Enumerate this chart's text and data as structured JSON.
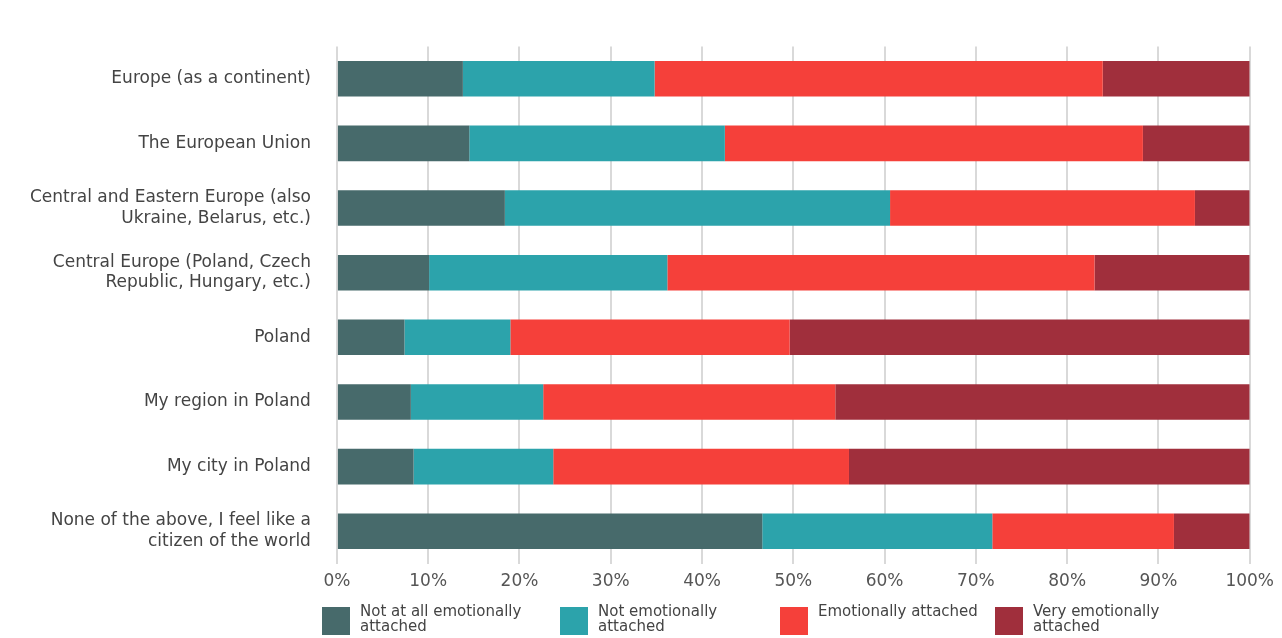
{
  "chart_data": {
    "type": "bar",
    "orientation": "horizontal",
    "stacked": true,
    "categories": [
      "Europe (as a continent)",
      "The European Union",
      "Central and Eastern Europe (also Ukraine, Belarus, etc.)",
      "Central Europe (Poland, Czech Republic, Hungary, etc.)",
      "Poland",
      "My region in Poland",
      "My city in Poland",
      "None of the above, I feel like a citizen of the world"
    ],
    "series": [
      {
        "name": "Not at all emotionally attached",
        "color": "#476a6b",
        "values": [
          13.8,
          14.5,
          18.4,
          10.1,
          7.4,
          8.1,
          8.4,
          46.6
        ]
      },
      {
        "name": "Not emotionally attached",
        "color": "#2ca3ab",
        "values": [
          21.0,
          28.0,
          42.2,
          26.1,
          11.6,
          14.5,
          15.3,
          25.2
        ]
      },
      {
        "name": "Emotionally attached",
        "color": "#f5403a",
        "values": [
          49.1,
          45.8,
          33.4,
          46.8,
          30.6,
          32.0,
          32.4,
          19.9
        ]
      },
      {
        "name": "Very emotionally attached",
        "color": "#a02f3c",
        "values": [
          16.1,
          11.7,
          6.0,
          17.0,
          50.4,
          45.4,
          43.9,
          8.3
        ]
      }
    ],
    "xlim": [
      0,
      100
    ],
    "xticks": [
      {
        "value": 0,
        "label": "0%"
      },
      {
        "value": 10,
        "label": "10%"
      },
      {
        "value": 20,
        "label": "20%"
      },
      {
        "value": 30,
        "label": "30%"
      },
      {
        "value": 40,
        "label": "40%"
      },
      {
        "value": 50,
        "label": "50%"
      },
      {
        "value": 60,
        "label": "60%"
      },
      {
        "value": 70,
        "label": "70%"
      },
      {
        "value": 80,
        "label": "80%"
      },
      {
        "value": 90,
        "label": "90%"
      },
      {
        "value": 100,
        "label": "100%"
      }
    ],
    "grid": "x",
    "legend": "bottom"
  }
}
